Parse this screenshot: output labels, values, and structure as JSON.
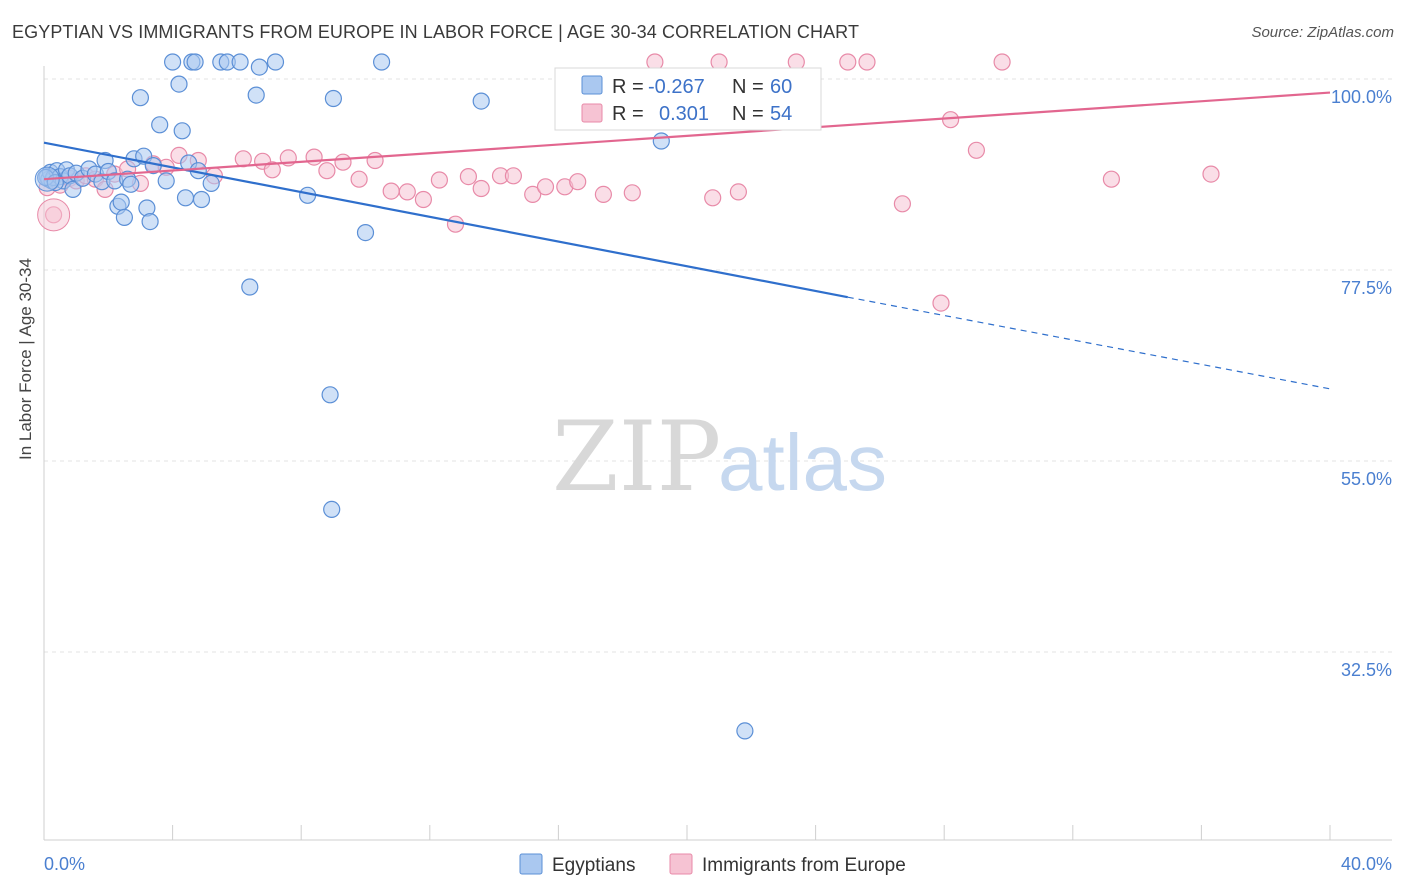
{
  "title": "EGYPTIAN VS IMMIGRANTS FROM EUROPE IN LABOR FORCE | AGE 30-34 CORRELATION CHART",
  "source": "Source: ZipAtlas.com",
  "watermark": {
    "zip": "ZIP",
    "atlas": "atlas"
  },
  "colors": {
    "blue_fill": "#aac8f0",
    "blue_stroke": "#5b8fd6",
    "blue_line": "#2f6fcc",
    "pink_fill": "#f6c3d3",
    "pink_stroke": "#e88aa8",
    "pink_line": "#e2668f",
    "tick_text": "#4a7fd0",
    "grid": "#e3e3e3"
  },
  "legend": {
    "rows": [
      {
        "r_label": "R =",
        "r_value": "-0.267",
        "n_label": "N =",
        "n_value": "60"
      },
      {
        "r_label": "R =",
        "r_value": "0.301",
        "n_label": "N =",
        "n_value": "54"
      }
    ],
    "placement": "top-center"
  },
  "bottom_legend": [
    "Egyptians",
    "Immigrants from Europe"
  ],
  "chart_data": {
    "type": "scatter",
    "title": "EGYPTIAN VS IMMIGRANTS FROM EUROPE IN LABOR FORCE | AGE 30-34 CORRELATION CHART",
    "xlabel": "",
    "ylabel": "In Labor Force | Age 30-34",
    "xlim": [
      0,
      40
    ],
    "ylim": [
      15,
      103
    ],
    "x_tick_labels": [
      "0.0%",
      "40.0%"
    ],
    "y_ticks": [
      100,
      77.5,
      55,
      32.5
    ],
    "y_tick_labels": [
      "100.0%",
      "77.5%",
      "55.0%",
      "32.5%"
    ],
    "grid": true,
    "series": [
      {
        "name": "Egyptians",
        "color": "#aac8f0",
        "trend": {
          "x0": 0,
          "y0": 92.5,
          "x1": 25,
          "y1": 74.3,
          "dashed_to_x": 40,
          "dashed_to_y": 63.5
        },
        "points": [
          [
            0.1,
            88.5
          ],
          [
            0.15,
            88.2
          ],
          [
            0.2,
            89.0
          ],
          [
            0.25,
            88.0
          ],
          [
            0.3,
            88.4
          ],
          [
            0.4,
            89.2
          ],
          [
            0.5,
            88.5
          ],
          [
            0.6,
            88.0
          ],
          [
            0.7,
            89.3
          ],
          [
            0.8,
            88.6
          ],
          [
            0.9,
            87.0
          ],
          [
            1.0,
            88.9
          ],
          [
            1.2,
            88.3
          ],
          [
            1.4,
            89.4
          ],
          [
            1.6,
            88.8
          ],
          [
            1.8,
            87.9
          ],
          [
            1.9,
            90.4
          ],
          [
            2.0,
            89.1
          ],
          [
            2.2,
            88.0
          ],
          [
            2.3,
            85.0
          ],
          [
            2.4,
            85.5
          ],
          [
            2.5,
            83.7
          ],
          [
            2.6,
            88.2
          ],
          [
            2.7,
            87.6
          ],
          [
            2.8,
            90.6
          ],
          [
            3.0,
            97.8
          ],
          [
            3.1,
            90.9
          ],
          [
            3.2,
            84.8
          ],
          [
            3.3,
            83.2
          ],
          [
            3.4,
            89.8
          ],
          [
            3.6,
            94.6
          ],
          [
            3.8,
            88.0
          ],
          [
            4.0,
            102.0
          ],
          [
            4.2,
            99.4
          ],
          [
            4.3,
            93.9
          ],
          [
            4.4,
            86.0
          ],
          [
            4.5,
            90.1
          ],
          [
            4.6,
            102.0
          ],
          [
            4.7,
            102.0
          ],
          [
            4.8,
            89.2
          ],
          [
            4.9,
            85.8
          ],
          [
            5.2,
            87.7
          ],
          [
            5.5,
            102.0
          ],
          [
            5.7,
            102.0
          ],
          [
            6.1,
            102.0
          ],
          [
            6.4,
            75.5
          ],
          [
            6.6,
            98.1
          ],
          [
            6.7,
            101.4
          ],
          [
            7.2,
            102.0
          ],
          [
            8.2,
            86.3
          ],
          [
            8.9,
            62.8
          ],
          [
            8.95,
            49.3
          ],
          [
            9.0,
            97.7
          ],
          [
            10.0,
            81.9
          ],
          [
            10.5,
            102.0
          ],
          [
            13.6,
            97.4
          ],
          [
            19.2,
            92.7
          ],
          [
            21.8,
            23.2
          ],
          [
            0.05,
            88.4
          ],
          [
            0.35,
            87.8
          ]
        ]
      },
      {
        "name": "Immigrants from Europe",
        "color": "#f6c3d3",
        "trend": {
          "x0": 0,
          "y0": 88.2,
          "x1": 40,
          "y1": 98.4
        },
        "points": [
          [
            0.1,
            87.2
          ],
          [
            0.3,
            84.0
          ],
          [
            0.5,
            87.5
          ],
          [
            0.8,
            88.3
          ],
          [
            1.0,
            88.0
          ],
          [
            1.3,
            88.6
          ],
          [
            1.6,
            88.2
          ],
          [
            1.9,
            87.0
          ],
          [
            2.2,
            88.8
          ],
          [
            2.6,
            89.4
          ],
          [
            3.0,
            87.7
          ],
          [
            3.4,
            90.0
          ],
          [
            3.8,
            89.6
          ],
          [
            4.2,
            91.0
          ],
          [
            4.8,
            90.4
          ],
          [
            5.3,
            88.6
          ],
          [
            6.2,
            90.6
          ],
          [
            6.8,
            90.3
          ],
          [
            7.1,
            89.3
          ],
          [
            7.6,
            90.7
          ],
          [
            8.4,
            90.8
          ],
          [
            8.8,
            89.2
          ],
          [
            9.3,
            90.2
          ],
          [
            9.8,
            88.2
          ],
          [
            10.3,
            90.4
          ],
          [
            10.8,
            86.8
          ],
          [
            11.3,
            86.7
          ],
          [
            11.8,
            85.8
          ],
          [
            12.3,
            88.1
          ],
          [
            12.8,
            82.9
          ],
          [
            13.2,
            88.5
          ],
          [
            13.6,
            87.1
          ],
          [
            14.2,
            88.6
          ],
          [
            14.6,
            88.6
          ],
          [
            15.2,
            86.4
          ],
          [
            15.6,
            87.3
          ],
          [
            16.2,
            87.3
          ],
          [
            16.6,
            87.9
          ],
          [
            17.4,
            86.4
          ],
          [
            18.3,
            86.6
          ],
          [
            19.0,
            102.0
          ],
          [
            20.8,
            86.0
          ],
          [
            21.0,
            102.0
          ],
          [
            21.6,
            86.7
          ],
          [
            23.4,
            102.0
          ],
          [
            25.0,
            102.0
          ],
          [
            25.6,
            102.0
          ],
          [
            26.7,
            85.3
          ],
          [
            27.9,
            73.6
          ],
          [
            28.2,
            95.2
          ],
          [
            29.0,
            91.6
          ],
          [
            29.8,
            102.0
          ],
          [
            33.2,
            88.2
          ],
          [
            36.3,
            88.8
          ]
        ]
      }
    ]
  }
}
